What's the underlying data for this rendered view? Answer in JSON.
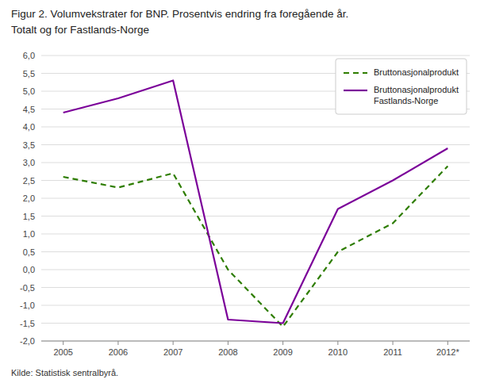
{
  "chart_data": {
    "type": "line",
    "title": "Figur 2. Volumvekstrater for BNP. Prosentvis endring fra foregående år.",
    "subtitle": "Totalt og for Fastlands-Norge",
    "source": "Kilde: Statistisk sentralbyrå.",
    "x": [
      2005,
      2006,
      2007,
      2008,
      2009,
      2010,
      2011,
      2012
    ],
    "xlim": [
      2004.6,
      2012.4
    ],
    "xticks": [
      2005,
      2006,
      2007,
      2008,
      2009,
      2010,
      2011,
      {
        "value": 2012,
        "label": "2012*"
      }
    ],
    "series": [
      {
        "name": "Bruttonasjonalprodukt",
        "color": "#2e7d00",
        "line_style": "dashed",
        "values": [
          2.6,
          2.3,
          2.7,
          0.0,
          -1.6,
          0.5,
          1.3,
          2.9
        ]
      },
      {
        "name": "Bruttonasjonalprodukt\nFastlands-Norge",
        "color": "#7b0099",
        "line_style": "solid",
        "values": [
          4.4,
          4.8,
          5.3,
          -1.4,
          -1.5,
          1.7,
          2.5,
          3.4
        ]
      }
    ],
    "ylim": [
      -2.0,
      6.0
    ],
    "yticks": [
      {
        "value": -2.0,
        "label": "-2,0"
      },
      {
        "value": -1.5,
        "label": "-1,5"
      },
      {
        "value": -1.0,
        "label": "-1,0"
      },
      {
        "value": -0.5,
        "label": "-0,5"
      },
      {
        "value": 0.0,
        "label": "0,0"
      },
      {
        "value": 0.5,
        "label": "0,5"
      },
      {
        "value": 1.0,
        "label": "1,0"
      },
      {
        "value": 1.5,
        "label": "1,5"
      },
      {
        "value": 2.0,
        "label": "2,0"
      },
      {
        "value": 2.5,
        "label": "2,5"
      },
      {
        "value": 3.0,
        "label": "3,0"
      },
      {
        "value": 3.5,
        "label": "3,5"
      },
      {
        "value": 4.0,
        "label": "4,0"
      },
      {
        "value": 4.5,
        "label": "4,5"
      },
      {
        "value": 5.0,
        "label": "5,0"
      },
      {
        "value": 5.5,
        "label": "5,5"
      },
      {
        "value": 6.0,
        "label": "6,0"
      }
    ],
    "grid": "y",
    "legend": "upper right"
  }
}
